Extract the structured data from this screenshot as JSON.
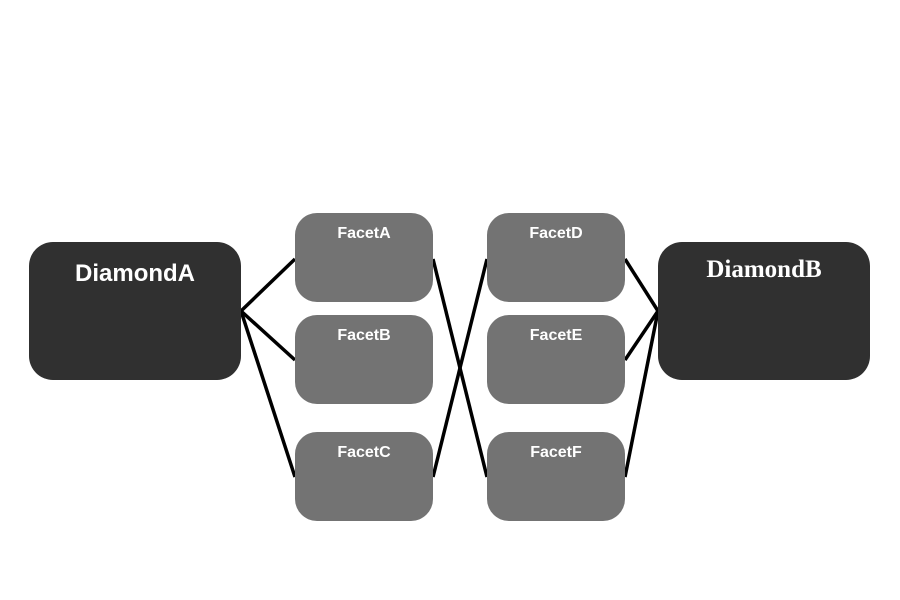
{
  "nodes": {
    "diamond_a": "DiamondA",
    "diamond_b": "DiamondB",
    "facet_a": "FacetA",
    "facet_b": "FacetB",
    "facet_c": "FacetC",
    "facet_d": "FacetD",
    "facet_e": "FacetE",
    "facet_f": "FacetF"
  },
  "edges": [
    {
      "from": "DiamondA",
      "to": "FacetA"
    },
    {
      "from": "DiamondA",
      "to": "FacetB"
    },
    {
      "from": "DiamondA",
      "to": "FacetC"
    },
    {
      "from": "FacetA",
      "to": "FacetF"
    },
    {
      "from": "FacetC",
      "to": "FacetD"
    },
    {
      "from": "FacetD",
      "to": "DiamondB"
    },
    {
      "from": "FacetE",
      "to": "DiamondB"
    },
    {
      "from": "FacetF",
      "to": "DiamondB"
    }
  ],
  "colors": {
    "diamond_fill": "#303030",
    "facet_fill": "#737373",
    "label_text": "#ffffff",
    "connector": "#000000",
    "background": "#ffffff"
  }
}
